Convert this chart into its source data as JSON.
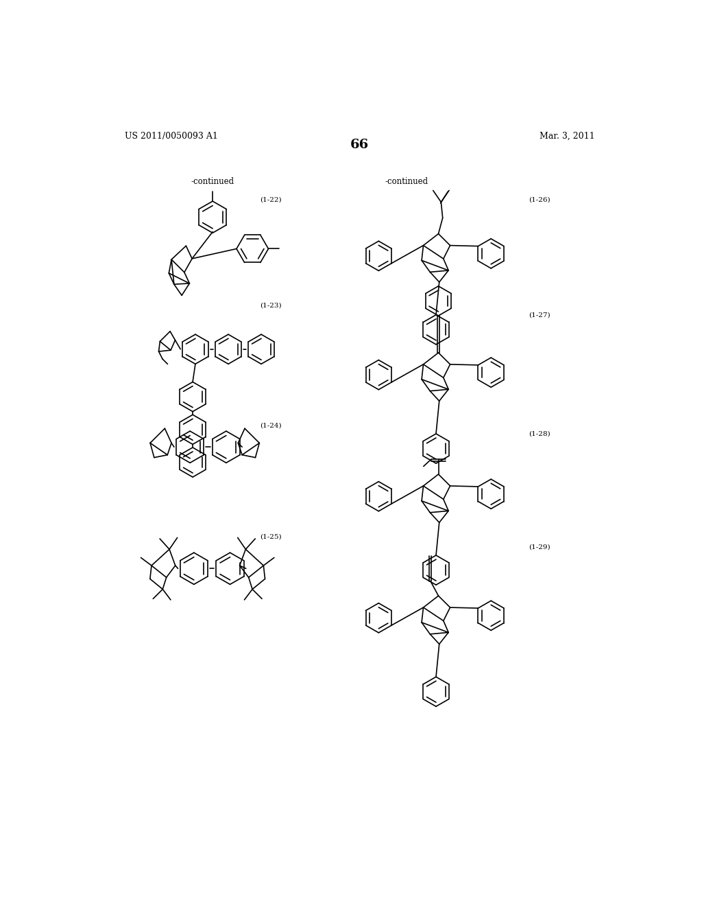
{
  "background_color": "#ffffff",
  "page_number": "66",
  "header_left": "US 2011/0050093 A1",
  "header_right": "Mar. 3, 2011",
  "continued_left": "-continued",
  "continued_right": "-continued"
}
